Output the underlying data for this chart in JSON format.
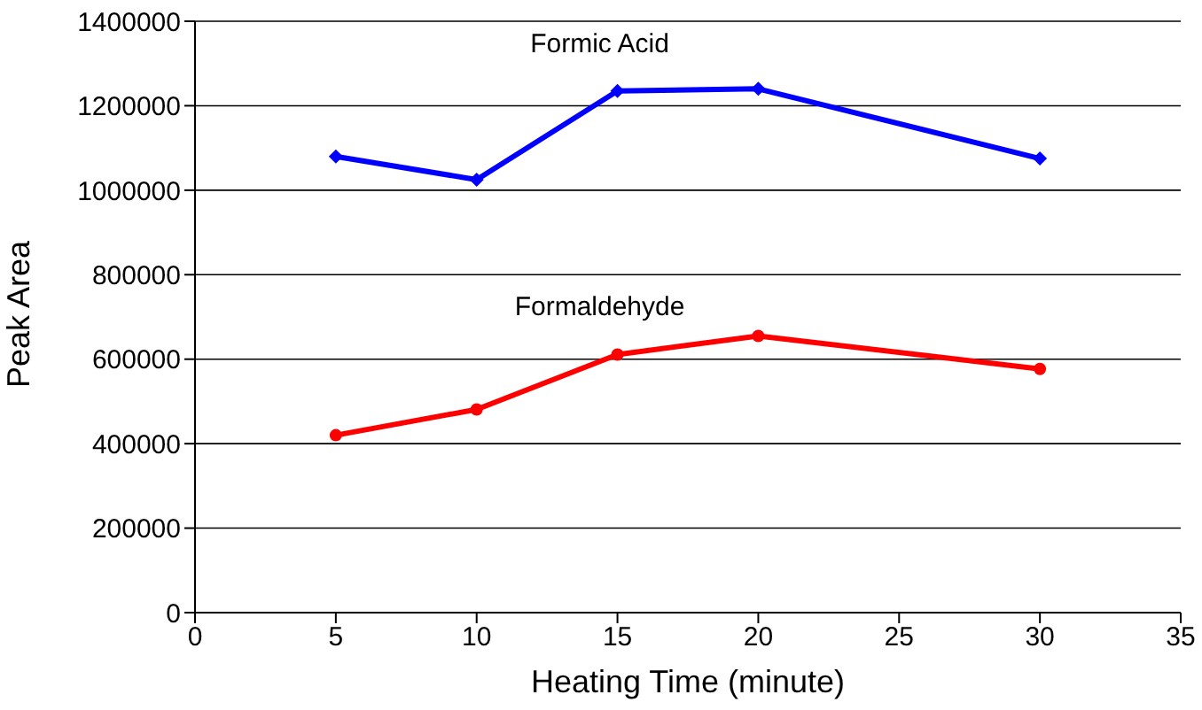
{
  "chart_data": {
    "type": "line",
    "xlabel": "Heating Time (minute)",
    "ylabel": "Peak Area",
    "x": [
      5,
      10,
      15,
      20,
      30
    ],
    "series": [
      {
        "name": "Formic Acid",
        "color": "#0000ff",
        "marker": "diamond",
        "values": [
          1080000,
          1025000,
          1235000,
          1240000,
          1075000
        ]
      },
      {
        "name": "Formaldehyde",
        "color": "#ff0000",
        "marker": "circle",
        "values": [
          420000,
          481000,
          611000,
          655000,
          577000
        ]
      }
    ],
    "xlim": [
      0,
      35
    ],
    "xticks": [
      0,
      5,
      10,
      15,
      20,
      25,
      30,
      35
    ],
    "ylim": [
      0,
      1400000
    ],
    "yticks": [
      0,
      200000,
      400000,
      600000,
      800000,
      1000000,
      1200000,
      1400000
    ],
    "grid": "y",
    "legend": false
  }
}
